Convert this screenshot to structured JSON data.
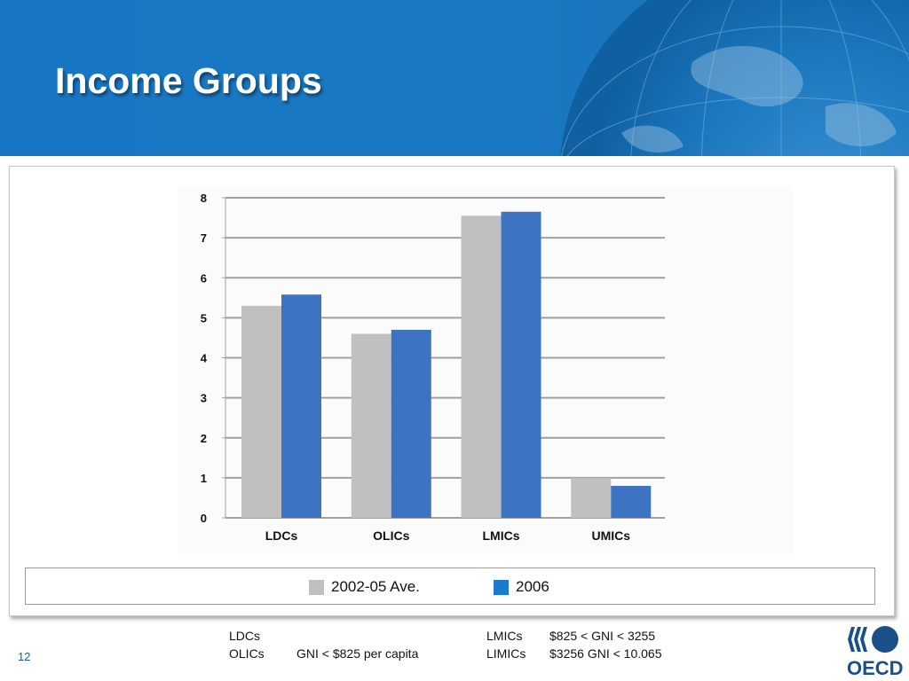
{
  "slide": {
    "title": "Income Groups",
    "page_number": "12"
  },
  "colors": {
    "header_bg": "#1a78c2",
    "series_2002": "#c0c0c0",
    "series_2006": "#3d74c2",
    "legend_2006": "#1a7ad0",
    "oecd_blue": "#1a4f8a"
  },
  "legend": {
    "items": [
      {
        "label": "2002-05 Ave.",
        "color": "#c0c0c0"
      },
      {
        "label": "2006",
        "color": "#1a7ad0"
      }
    ]
  },
  "footnotes": {
    "left": [
      {
        "abbr": "LDCs",
        "desc": ""
      },
      {
        "abbr": "OLICs",
        "desc": "GNI < $825 per capita"
      }
    ],
    "right": [
      {
        "abbr": "LMICs",
        "desc": "$825 < GNI < 3255"
      },
      {
        "abbr": "LIMICs",
        "desc": "$3256 GNI < 10.065"
      }
    ]
  },
  "logo": {
    "text": "OECD"
  },
  "chart_data": {
    "type": "bar",
    "categories": [
      "LDCs",
      "OLICs",
      "LMICs",
      "UMICs"
    ],
    "series": [
      {
        "name": "2002-05 Ave.",
        "values": [
          5.3,
          4.6,
          7.55,
          1.0
        ]
      },
      {
        "name": "2006",
        "values": [
          5.58,
          4.7,
          7.65,
          0.8
        ]
      }
    ],
    "y_ticks": [
      "0",
      "1",
      "2",
      "3",
      "4",
      "5",
      "6",
      "7",
      "8"
    ],
    "ylim": [
      0,
      8
    ],
    "grid": true,
    "legend_position": "bottom"
  }
}
